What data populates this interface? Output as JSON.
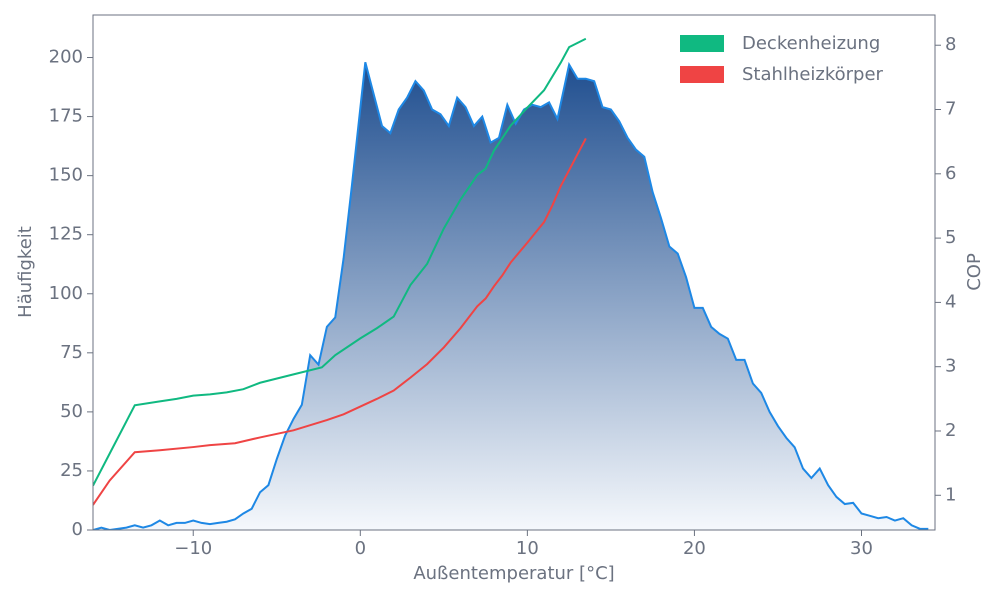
{
  "chart_data": {
    "type": "area",
    "xlabel": "Außentemperatur [°C]",
    "ylabel": "Häufigkeit",
    "y2label": "COP",
    "xlim": [
      -16,
      34.4
    ],
    "ylim": [
      0,
      218
    ],
    "y2lim": [
      0.46,
      8.47
    ],
    "xticks": [
      {
        "value": -10,
        "label": "−10"
      },
      0,
      10,
      20,
      30
    ],
    "yticks": [
      0,
      25,
      50,
      75,
      100,
      125,
      150,
      175,
      200
    ],
    "y2ticks": [
      1,
      2,
      3,
      4,
      5,
      6,
      7,
      8
    ],
    "legend": "upper right",
    "series": [
      {
        "type": "area",
        "color": "#1e88e5",
        "fill_top": "#1f4e8f",
        "fill_bottom": "#f5f8fc",
        "x": [
          -16,
          -15.5,
          -15,
          -14,
          -13.5,
          -13,
          -12.5,
          -12,
          -11.5,
          -11,
          -10.5,
          -10,
          -9.5,
          -9,
          -8.5,
          -8,
          -7.5,
          -7,
          -6.5,
          -6,
          -5.5,
          -5,
          -4.5,
          -4,
          -3.5,
          -3,
          -2.5,
          -2,
          -1.5,
          -1,
          -0.5,
          0.3,
          1.3,
          1.8,
          2.3,
          2.8,
          3.3,
          3.8,
          4.3,
          4.8,
          5.3,
          5.8,
          6.3,
          6.8,
          7.3,
          7.8,
          8.3,
          8.8,
          9.3,
          9.8,
          10.3,
          10.8,
          11.3,
          11.8,
          12.5,
          13,
          13.5,
          14,
          14.5,
          15,
          15.5,
          16,
          16.5,
          17,
          17.5,
          18,
          18.5,
          19,
          19.5,
          20,
          20.5,
          21,
          21.5,
          22,
          22.5,
          23,
          23.5,
          24,
          24.5,
          25,
          25.5,
          26,
          26.5,
          27,
          27.5,
          28,
          28.5,
          29,
          29.5,
          30,
          30.5,
          31,
          31.5,
          32,
          32.5,
          33,
          33.5,
          34
        ],
        "values": [
          0,
          1,
          0,
          1,
          2,
          1,
          2,
          4,
          2,
          3,
          3,
          4,
          3,
          2.5,
          3,
          3.5,
          4.5,
          7,
          9,
          16,
          19,
          30,
          40,
          47,
          53,
          74,
          70,
          86,
          90,
          115,
          146,
          198,
          171,
          168,
          178,
          183,
          190,
          186,
          178,
          176,
          171,
          183,
          179,
          171,
          175,
          164,
          166,
          180,
          172,
          178,
          180,
          179,
          181,
          174,
          197,
          191,
          191,
          190,
          179,
          178,
          173,
          166,
          161,
          158,
          143,
          132,
          120,
          117,
          107,
          94,
          94,
          86,
          83,
          81,
          72,
          72,
          62,
          58,
          50,
          44,
          39,
          35,
          26,
          22,
          26,
          19,
          14,
          11,
          11.5,
          7,
          6,
          5,
          5.5,
          4,
          5,
          2,
          0.5,
          0.5
        ]
      },
      {
        "type": "line",
        "name": "Deckenheizung",
        "color": "#10b981",
        "axis": "y2",
        "x": [
          -16,
          -15,
          -13.5,
          -12,
          -11,
          -10,
          -9,
          -8,
          -7,
          -6,
          -4,
          -2.3,
          -1.5,
          0,
          1,
          2,
          3,
          4,
          5,
          6,
          7,
          7.5,
          8,
          9,
          10,
          11,
          12,
          12.5,
          13.5
        ],
        "values": [
          1.15,
          1.65,
          2.4,
          2.46,
          2.5,
          2.55,
          2.57,
          2.6,
          2.65,
          2.75,
          2.88,
          2.99,
          3.18,
          3.44,
          3.6,
          3.78,
          4.27,
          4.6,
          5.15,
          5.6,
          5.98,
          6.08,
          6.36,
          6.75,
          7.03,
          7.3,
          7.73,
          7.97,
          8.1
        ]
      },
      {
        "type": "line",
        "name": "Stahlheizkörper",
        "color": "#ef4444",
        "axis": "y2",
        "x": [
          -16,
          -15,
          -13.5,
          -12,
          -10,
          -9,
          -7.5,
          -6,
          -4,
          -2,
          -1,
          0,
          1,
          2,
          3,
          4,
          5,
          6,
          7,
          7.5,
          8,
          8.5,
          9,
          10,
          11,
          11.5,
          12,
          13.5
        ],
        "values": [
          0.85,
          1.23,
          1.67,
          1.7,
          1.75,
          1.78,
          1.81,
          1.9,
          2.01,
          2.17,
          2.26,
          2.38,
          2.5,
          2.63,
          2.83,
          3.04,
          3.3,
          3.6,
          3.94,
          4.06,
          4.25,
          4.42,
          4.62,
          4.93,
          5.25,
          5.51,
          5.81,
          6.55
        ]
      }
    ]
  }
}
